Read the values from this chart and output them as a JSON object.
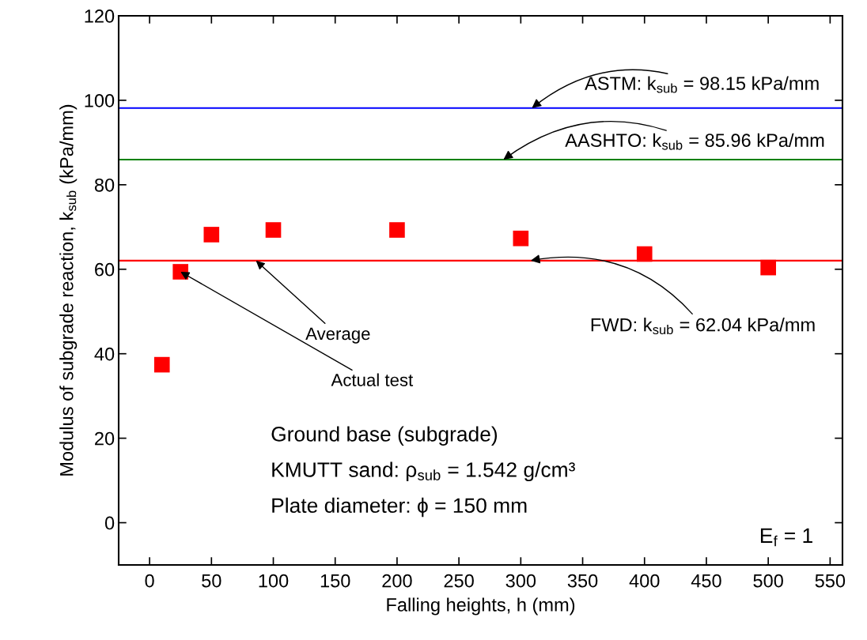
{
  "chart_data": {
    "type": "scatter",
    "xlabel": "Falling heights, h (mm)",
    "ylabel": "Modulus of subgrade reaction, k$_{sub}$ (kPa/mm)",
    "x": [
      10,
      25,
      50,
      100,
      200,
      300,
      400,
      500
    ],
    "series": [
      {
        "color": "#ff0000",
        "values": [
          37.4,
          59.4,
          68.2,
          69.3,
          69.3,
          67.3,
          63.6,
          60.4
        ]
      }
    ],
    "marker": "square",
    "xlim": [
      -25,
      560
    ],
    "ylim": [
      -10,
      120
    ],
    "xticks": [
      0,
      50,
      100,
      150,
      200,
      250,
      300,
      350,
      400,
      450,
      500,
      550
    ],
    "yticks": [
      0,
      20,
      40,
      60,
      80,
      100,
      120
    ],
    "ref_lines": [
      {
        "axis": "y",
        "value": 98.15,
        "label": "ASTM: k$_{sub}$ = 98.15 kPa/mm",
        "color": "#0000ff"
      },
      {
        "axis": "y",
        "value": 85.96,
        "label": "AASHTO: k$_{sub}$ = 85.96 kPa/mm",
        "color": "#008000"
      },
      {
        "axis": "y",
        "value": 62.04,
        "label": "FWD: k$_{sub}$ = 62.04 kPa/mm",
        "color": "#ff0000"
      }
    ],
    "annotations": [
      {
        "text": "Average",
        "x": 86,
        "y": 62.04
      },
      {
        "text": "Actual test",
        "x": 25,
        "y": 59.4
      },
      "Ground base (subgrade)",
      "KMUTT sand: ρ$_{sub}$ = 1.542 g/cm³",
      "Plate diameter: ϕ = 150 mm",
      "E$_{f}$ = 1"
    ],
    "grid": false,
    "legend": false
  }
}
